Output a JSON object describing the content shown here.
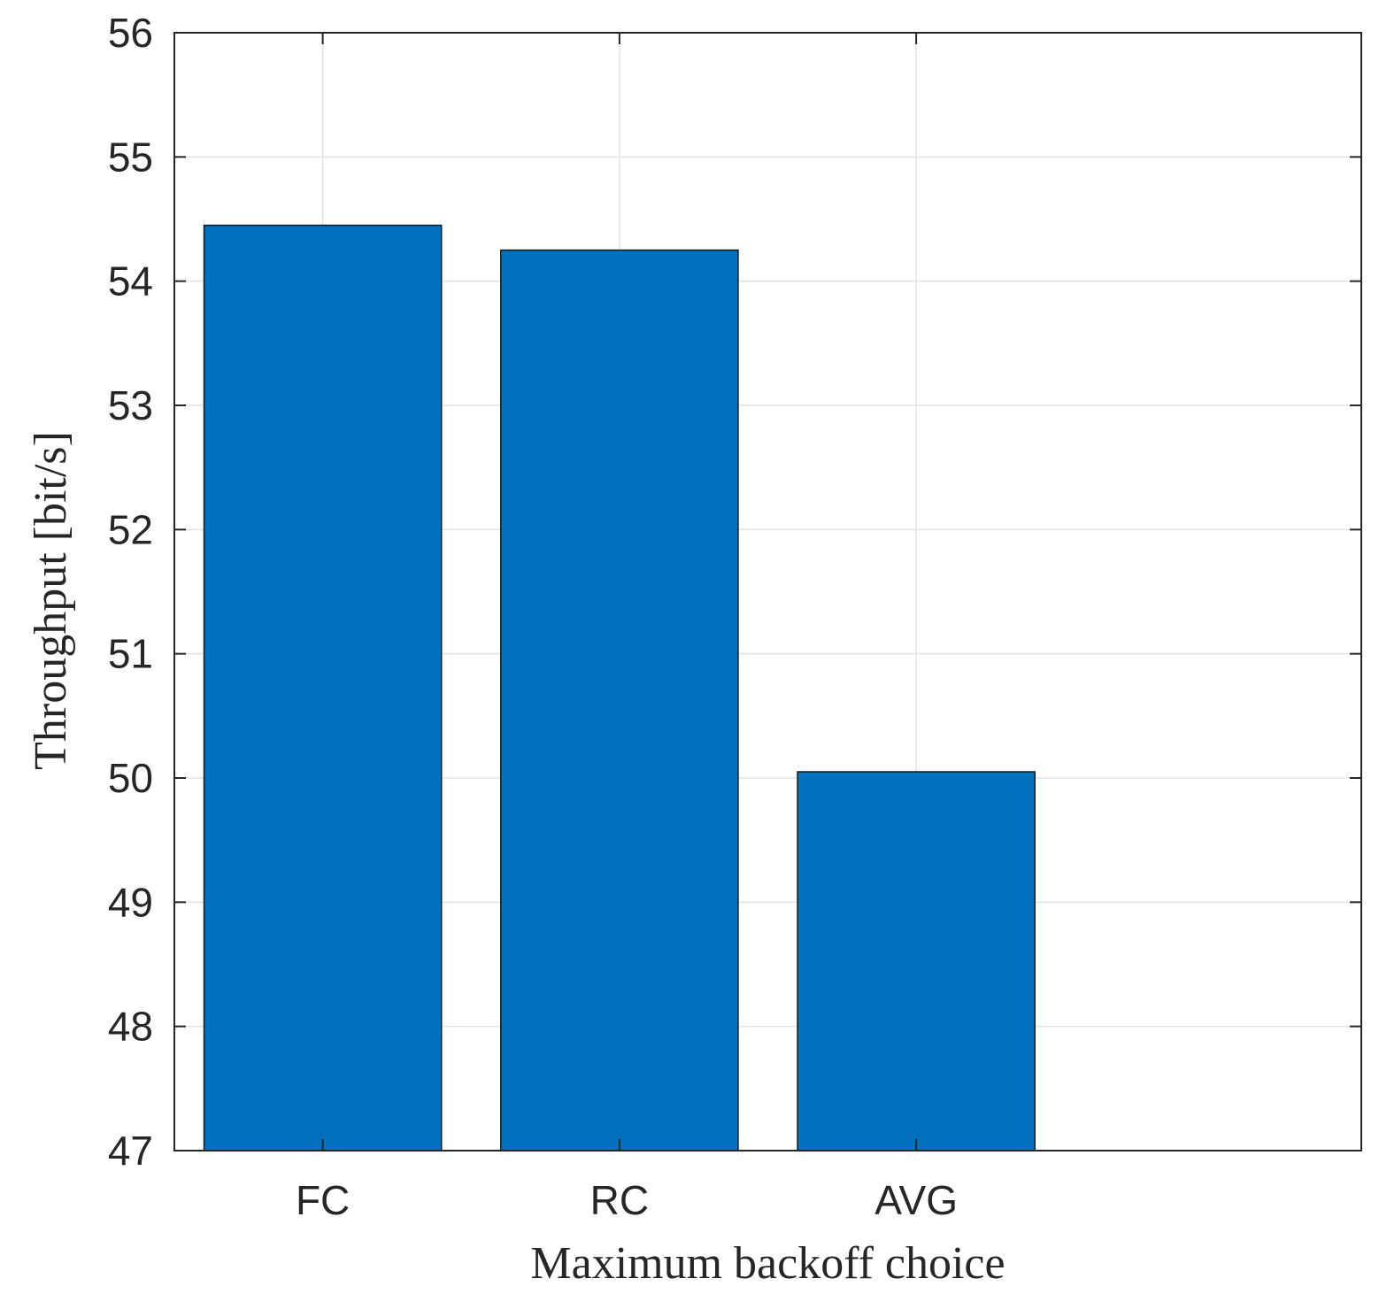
{
  "chart_data": {
    "type": "bar",
    "title": "",
    "xlabel": "Maximum backoff choice",
    "ylabel": "Throughput [bit/s]",
    "categories": [
      "FC",
      "RC",
      "AVG"
    ],
    "values": [
      54.45,
      54.25,
      50.05
    ],
    "ylim": [
      47,
      56
    ],
    "yticks": [
      "47",
      "48",
      "49",
      "50",
      "51",
      "52",
      "53",
      "54",
      "55",
      "56"
    ],
    "grid": true,
    "legend": "none",
    "bar_color": "#0072BD"
  }
}
